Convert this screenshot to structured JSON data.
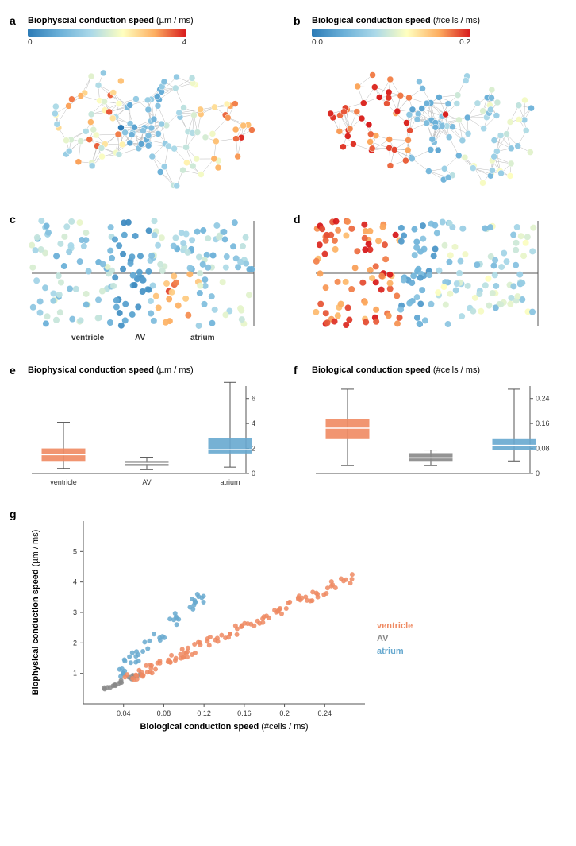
{
  "colors": {
    "colormap_stops": [
      "#2c7bb6",
      "#6bb0d8",
      "#abd9e9",
      "#ffffbf",
      "#fdae61",
      "#d7191c"
    ],
    "ventricle": "#ef8a62",
    "av": "#888888",
    "atrium": "#67a9cf",
    "axis": "#555555",
    "bg": "#ffffff"
  },
  "panel_a": {
    "label": "a",
    "title_bold": "Biophyscial conduction speed",
    "title_unit": "(µm / ms)",
    "cbar_min": "0",
    "cbar_max": "4",
    "network_seed": 11
  },
  "panel_b": {
    "label": "b",
    "title_bold": "Biological conduction speed",
    "title_unit": "(#cells / ms)",
    "cbar_min": "0.0",
    "cbar_max": "0.2",
    "network_seed": 12
  },
  "panel_c": {
    "label": "c",
    "x_labels": [
      "ventricle",
      "AV",
      "atrium"
    ],
    "seed": 21
  },
  "panel_d": {
    "label": "d",
    "seed": 22
  },
  "panel_e": {
    "label": "e",
    "title_bold": "Biophysical conduction speed",
    "title_unit": "(µm / ms)",
    "categories": [
      "ventricle",
      "AV",
      "atrium"
    ],
    "ylim": [
      0,
      7
    ],
    "yticks": [
      0,
      2,
      4,
      6
    ],
    "boxes": [
      {
        "q1": 1.0,
        "median": 1.5,
        "q3": 2.0,
        "wl": 0.4,
        "wh": 4.1,
        "color": "#ef8a62"
      },
      {
        "q1": 0.6,
        "median": 0.8,
        "q3": 1.0,
        "wl": 0.3,
        "wh": 1.3,
        "color": "#888888"
      },
      {
        "q1": 1.6,
        "median": 1.9,
        "q3": 2.8,
        "wl": 0.5,
        "wh": 7.3,
        "color": "#67a9cf"
      }
    ]
  },
  "panel_f": {
    "label": "f",
    "title_bold": "Biological conduction speed",
    "title_unit": "(#cells / ms)",
    "ylim": [
      0,
      0.28
    ],
    "yticks": [
      0.0,
      0.08,
      0.16,
      0.24
    ],
    "boxes": [
      {
        "q1": 0.11,
        "median": 0.145,
        "q3": 0.175,
        "wl": 0.025,
        "wh": 0.27,
        "color": "#ef8a62"
      },
      {
        "q1": 0.04,
        "median": 0.05,
        "q3": 0.065,
        "wl": 0.025,
        "wh": 0.075,
        "color": "#888888"
      },
      {
        "q1": 0.075,
        "median": 0.09,
        "q3": 0.11,
        "wl": 0.04,
        "wh": 0.27,
        "color": "#67a9cf"
      }
    ]
  },
  "panel_g": {
    "label": "g",
    "ylabel_bold": "Biophysical conduction speed",
    "ylabel_unit": "(µm / ms)",
    "xlabel_bold": "Biological conduction speed",
    "xlabel_unit": "(#cells / ms)",
    "xlim": [
      0.0,
      0.28
    ],
    "ylim": [
      0,
      6
    ],
    "xticks": [
      0.04,
      0.08,
      0.12,
      0.16,
      0.2,
      0.24
    ],
    "yticks": [
      1,
      2,
      3,
      4,
      5
    ],
    "legend": [
      {
        "label": "ventricle",
        "color": "#ef8a62"
      },
      {
        "label": "AV",
        "color": "#888888"
      },
      {
        "label": "atrium",
        "color": "#67a9cf"
      }
    ],
    "clusters": [
      {
        "color": "#888888",
        "n": 18,
        "x_range": [
          0.02,
          0.06
        ],
        "y_slope": 14,
        "y_intercept": 0.2,
        "noise": 0.12
      },
      {
        "color": "#67a9cf",
        "n": 45,
        "x_range": [
          0.03,
          0.12
        ],
        "y_slope": 30,
        "y_intercept": 0.0,
        "noise": 0.5
      },
      {
        "color": "#ef8a62",
        "n": 110,
        "x_range": [
          0.04,
          0.27
        ],
        "y_slope": 15,
        "y_intercept": 0.15,
        "noise": 0.35
      }
    ]
  }
}
